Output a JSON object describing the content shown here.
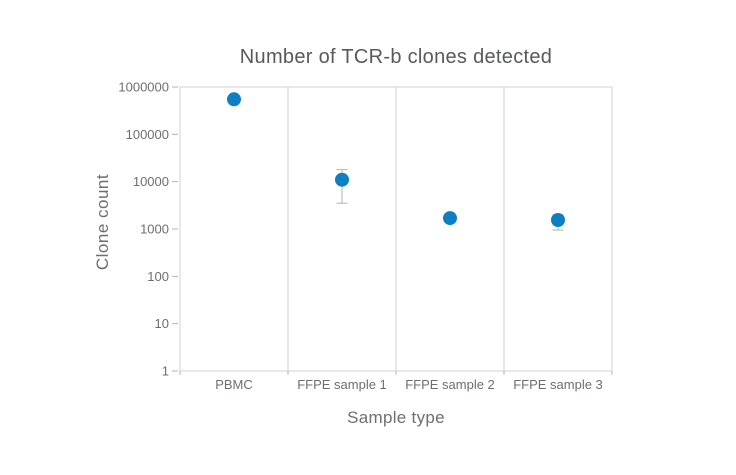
{
  "chart_data": {
    "type": "scatter",
    "title": "Number of TCR-b clones detected",
    "xlabel": "Sample type",
    "ylabel": "Clone count",
    "y_scale": "log",
    "ylim": [
      1,
      1000000
    ],
    "y_ticks": [
      1000000,
      100000,
      10000,
      1000,
      100,
      10,
      1
    ],
    "categories": [
      "PBMC",
      "FFPE sample 1",
      "FFPE sample 2",
      "FFPE sample 3"
    ],
    "series": [
      {
        "name": "Clone count",
        "values": [
          550000,
          11000,
          1700,
          1550
        ],
        "error_high": [
          null,
          18000,
          null,
          2000
        ],
        "error_low": [
          null,
          3500,
          null,
          950
        ]
      }
    ],
    "grid": "panel-dividers-only",
    "legend": "none",
    "colors": {
      "marker": "#0e7fc2",
      "error_bar": "#bdbdbd",
      "border": "#d2d2d2",
      "tick": "#b3b3b3",
      "title_text": "#58595b",
      "axis_text": "#6d6e71"
    }
  }
}
